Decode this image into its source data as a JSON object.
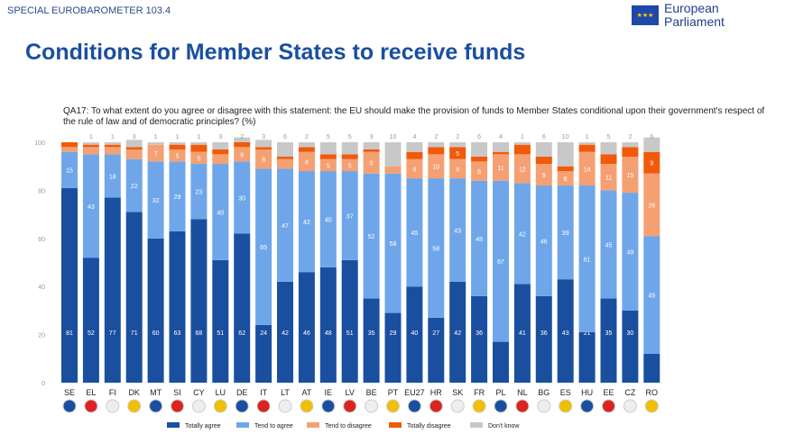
{
  "header": {
    "survey": "SPECIAL EUROBAROMETER 103.4",
    "logo_text": "European Parliament",
    "title": "Conditions for Member States to receive funds",
    "question": "QA17: To what extent do you agree or disagree with this statement: the EU should make the provision of funds to Member States conditional upon their government's respect of the rule of law and of democratic principles? (%)"
  },
  "chart_data": {
    "type": "bar",
    "stacked": true,
    "ylim": [
      0,
      100
    ],
    "yticks": [
      0,
      20,
      40,
      60,
      80,
      100
    ],
    "categories": [
      "SE",
      "EL",
      "FI",
      "DK",
      "MT",
      "SI",
      "CY",
      "LU",
      "DE",
      "IT",
      "LT",
      "AT",
      "IE",
      "LV",
      "BE",
      "PT",
      "EU27",
      "HR",
      "SK",
      "FR",
      "PL",
      "NL",
      "BG",
      "ES",
      "HU",
      "EE",
      "CZ",
      "RO"
    ],
    "series": [
      {
        "name": "Totally agree",
        "color": "#1a4fa0",
        "values": [
          81,
          52,
          77,
          71,
          60,
          63,
          68,
          51,
          62,
          24,
          42,
          46,
          48,
          51,
          35,
          29,
          40,
          27,
          42,
          36,
          17,
          41,
          36,
          43,
          21,
          35,
          30,
          12
        ]
      },
      {
        "name": "Tend to agree",
        "color": "#6fa6ea",
        "values": [
          15,
          43,
          18,
          22,
          32,
          29,
          23,
          40,
          30,
          65,
          47,
          42,
          40,
          37,
          52,
          58,
          45,
          58,
          43,
          48,
          67,
          42,
          46,
          39,
          61,
          45,
          49,
          49
        ]
      },
      {
        "name": "Tend to disagree",
        "color": "#f5a072",
        "values": [
          2,
          3,
          3,
          4,
          7,
          5,
          5,
          4,
          6,
          8,
          4,
          8,
          5,
          5,
          9,
          3,
          8,
          10,
          8,
          8,
          11,
          12,
          9,
          6,
          14,
          11,
          15,
          26
        ]
      },
      {
        "name": "Totally disagree",
        "color": "#f05a0a",
        "values": [
          2,
          1,
          1,
          1,
          0,
          2,
          3,
          2,
          2,
          1,
          1,
          2,
          2,
          2,
          1,
          0,
          3,
          3,
          5,
          2,
          1,
          4,
          3,
          2,
          3,
          4,
          4,
          9
        ]
      },
      {
        "name": "Don't know",
        "color": "#c8c8c8",
        "values": [
          0,
          1,
          1,
          3,
          1,
          1,
          1,
          3,
          2,
          3,
          6,
          2,
          5,
          5,
          3,
          10,
          4,
          2,
          2,
          6,
          4,
          1,
          6,
          10,
          1,
          5,
          2,
          6
        ]
      }
    ],
    "labelled": {
      "Tend to disagree": [
        false,
        false,
        false,
        false,
        true,
        true,
        true,
        false,
        true,
        true,
        false,
        true,
        true,
        true,
        true,
        false,
        true,
        true,
        true,
        true,
        true,
        true,
        true,
        true,
        true,
        true,
        true,
        true
      ],
      "Totally disagree": [
        false,
        false,
        false,
        false,
        false,
        false,
        false,
        false,
        false,
        false,
        false,
        false,
        false,
        false,
        false,
        false,
        false,
        false,
        true,
        false,
        false,
        false,
        false,
        false,
        false,
        false,
        false,
        true
      ]
    },
    "legend": "bottom"
  }
}
